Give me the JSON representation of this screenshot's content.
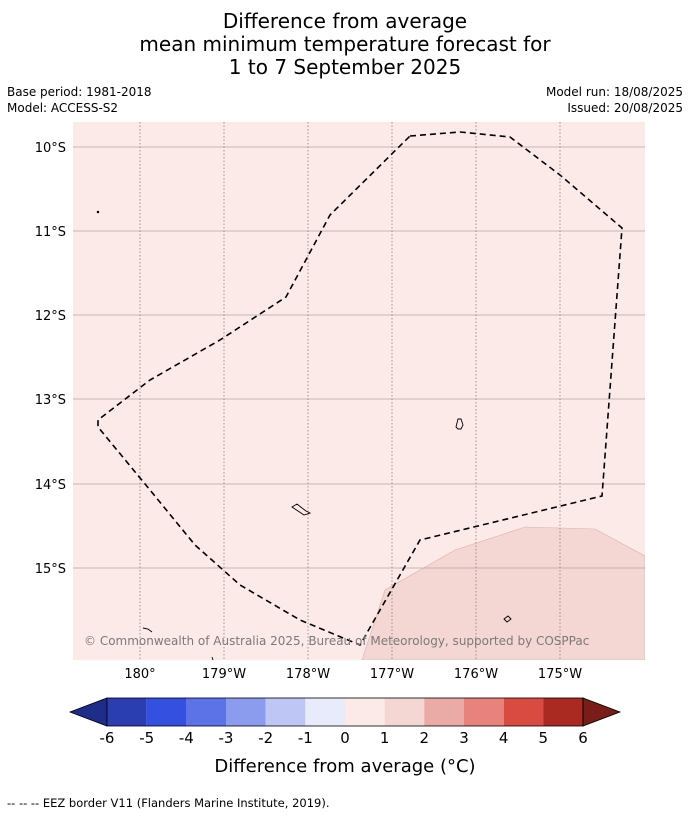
{
  "title": {
    "line1": "Difference from average",
    "line2": "mean minimum temperature forecast for",
    "line3": "1 to 7 September 2025"
  },
  "meta": {
    "base_period": "Base period: 1981-2018",
    "model": "Model: ACCESS-S2",
    "model_run": "Model run: 18/08/2025",
    "issued": "Issued: 20/08/2025"
  },
  "map": {
    "lat_labels": [
      "10°S",
      "11°S",
      "12°S",
      "13°S",
      "14°S",
      "15°S"
    ],
    "lon_labels": [
      "180°",
      "179°W",
      "178°W",
      "177°W",
      "176°W",
      "175°W"
    ],
    "background_category": "0 to 1",
    "background_color": "#fbeae8",
    "warm_region_category": "1 to 2",
    "warm_region_color": "#f4d6d3",
    "copyright": "© Commonwealth of Australia 2025, Bureau of Meteorology, supported by COSPPac"
  },
  "colorbar": {
    "label": "Difference from average (°C)",
    "tick_labels": [
      "-6",
      "-5",
      "-4",
      "-3",
      "-2",
      "-1",
      "0",
      "1",
      "2",
      "3",
      "4",
      "5",
      "6"
    ],
    "colors": [
      "#1f2d8a",
      "#2a3eb1",
      "#3350e0",
      "#5c73e8",
      "#8b9cef",
      "#bdc6f5",
      "#e8ebfc",
      "#fbeae8",
      "#f4d6d3",
      "#eaaaa6",
      "#e8827d",
      "#d94a40",
      "#aa2a22",
      "#7a1d18"
    ]
  },
  "footer": {
    "eez_note": "-- -- -- EEZ border V11 (Flanders Marine Institute, 2019)."
  }
}
